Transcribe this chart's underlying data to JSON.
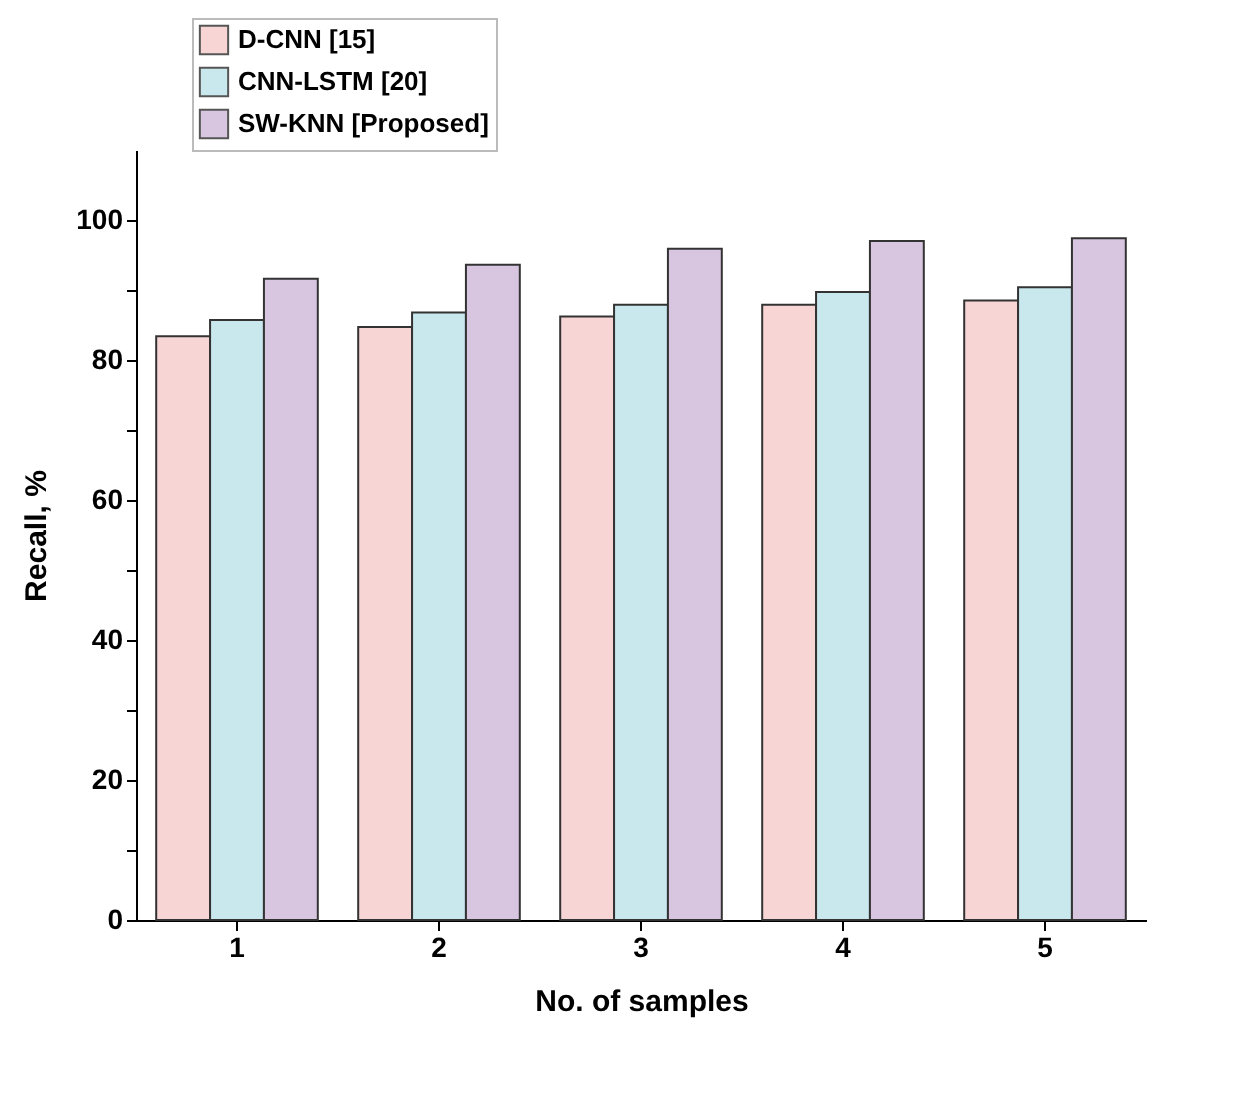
{
  "chart_data": {
    "type": "bar",
    "xlabel": "No. of samples",
    "ylabel": "Recall, %",
    "categories": [
      "1",
      "2",
      "3",
      "4",
      "5"
    ],
    "series": [
      {
        "name": "D-CNN [15]",
        "color": "#f8d5d5",
        "values": [
          83.4,
          84.7,
          86.2,
          87.9,
          88.5
        ]
      },
      {
        "name": "CNN-LSTM [20]",
        "color": "#c9e8ee",
        "values": [
          85.7,
          86.8,
          87.9,
          89.7,
          90.4
        ]
      },
      {
        "name": "SW-KNN [Proposed]",
        "color": "#d8c6e0",
        "values": [
          91.6,
          93.6,
          95.9,
          97.0,
          97.4
        ]
      }
    ],
    "ylim": [
      0,
      110
    ],
    "yticks": [
      0,
      {
        "value": 10,
        "label": null
      },
      20,
      {
        "value": 30,
        "label": null
      },
      40,
      {
        "value": 50,
        "label": null
      },
      60,
      {
        "value": 70,
        "label": null
      },
      80,
      {
        "value": 90,
        "label": null
      },
      100
    ],
    "grid": false,
    "legend": "top left"
  }
}
